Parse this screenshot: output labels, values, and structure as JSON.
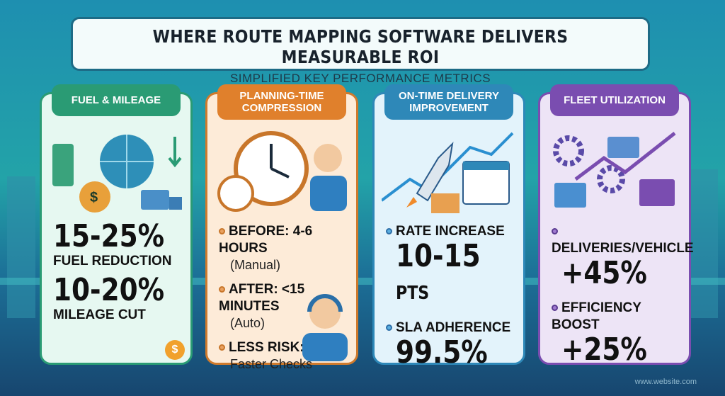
{
  "header": {
    "title": "WHERE ROUTE MAPPING SOFTWARE DELIVERS MEASURABLE ROI",
    "subtitle": "SIMPLIFIED KEY PERFORMANCE METRICS"
  },
  "colors": {
    "fuel": "#2a9b74",
    "planning": "#e0802c",
    "ontime": "#2e88b8",
    "fleet": "#7a4db0"
  },
  "cards": [
    {
      "title": "FUEL & MILEAGE",
      "icons": [
        "fuel-pump-icon",
        "globe-icon",
        "money-bag-icon",
        "truck-icon",
        "coin-icon"
      ],
      "metrics": [
        {
          "value": "15-25%",
          "label": "FUEL REDUCTION"
        },
        {
          "value": "10-20%",
          "label": "MILEAGE CUT"
        }
      ]
    },
    {
      "title": "PLANNING-TIME COMPRESSION",
      "icons": [
        "clock-icon",
        "stopwatch-icon",
        "agent-icon"
      ],
      "items": [
        {
          "label": "BEFORE: 4-6 HOURS",
          "note": "(Manual)"
        },
        {
          "label": "AFTER: <15 MINUTES",
          "note": "(Auto)"
        },
        {
          "label": "LESS RISK:",
          "note": "Faster Checks"
        }
      ]
    },
    {
      "title": "ON-TIME DELIVERY IMPROVEMENT",
      "icons": [
        "rocket-icon",
        "calendar-icon",
        "trend-up-icon",
        "box-icon"
      ],
      "metrics": [
        {
          "label": "RATE INCREASE",
          "value": "10-15",
          "unit": "PTS"
        },
        {
          "label": "SLA ADHERENCE",
          "value": "99.5%"
        }
      ]
    },
    {
      "title": "FLEET UTILIZATION",
      "icons": [
        "gear-icon",
        "truck-icon",
        "trend-up-icon"
      ],
      "metrics": [
        {
          "label": "DELIVERIES/VEHICLE",
          "value": "+45%"
        },
        {
          "label": "EFFICIENCY BOOST",
          "value": "+25%"
        }
      ]
    }
  ],
  "footer": "www.website.com"
}
